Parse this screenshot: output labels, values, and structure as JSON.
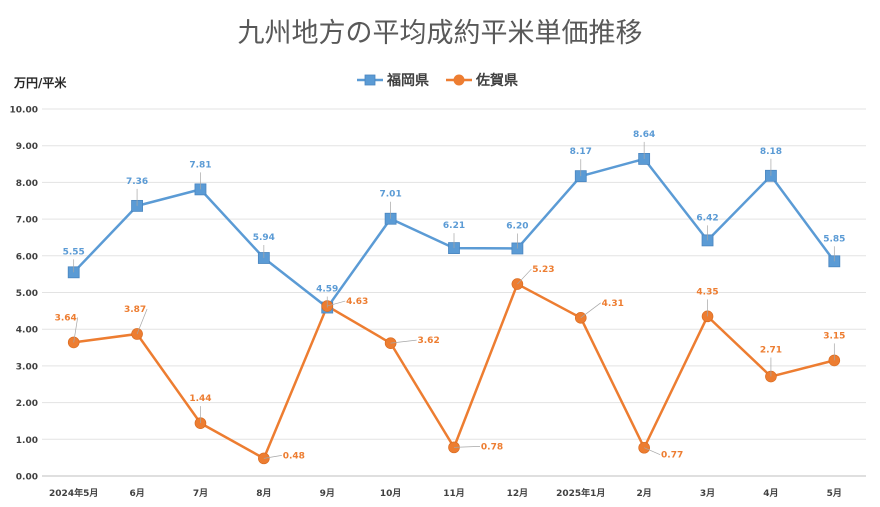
{
  "chart_data": {
    "type": "line",
    "title": "九州地方の平均成約平米単価推移",
    "ylabel": "万円/平米",
    "xlabel": "",
    "categories": [
      "2024年5月",
      "6月",
      "7月",
      "8月",
      "9月",
      "10月",
      "11月",
      "12月",
      "2025年1月",
      "2月",
      "3月",
      "4月",
      "5月"
    ],
    "ylim": [
      0,
      10
    ],
    "yticks": [
      "0.00",
      "1.00",
      "2.00",
      "3.00",
      "4.00",
      "5.00",
      "6.00",
      "7.00",
      "8.00",
      "9.00",
      "10.00"
    ],
    "grid": true,
    "legend_position": "top",
    "series": [
      {
        "name": "福岡県",
        "color": "#5b9bd5",
        "marker": "square",
        "values": [
          5.55,
          7.36,
          7.81,
          5.94,
          4.59,
          7.01,
          6.21,
          6.2,
          8.17,
          8.64,
          6.42,
          8.18,
          5.85
        ],
        "labels": [
          "5.55",
          "7.36",
          "7.81",
          "5.94",
          "4.59",
          "7.01",
          "6.21",
          "6.20",
          "8.17",
          "8.64",
          "6.42",
          "8.18",
          "5.85"
        ]
      },
      {
        "name": "佐賀県",
        "color": "#ed7d31",
        "marker": "circle",
        "values": [
          3.64,
          3.87,
          1.44,
          0.48,
          4.63,
          3.62,
          0.78,
          5.23,
          4.31,
          0.77,
          4.35,
          2.71,
          3.15
        ],
        "labels": [
          "3.64",
          "3.87",
          "1.44",
          "0.48",
          "4.63",
          "3.62",
          "0.78",
          "5.23",
          "4.31",
          "0.77",
          "4.35",
          "2.71",
          "3.15"
        ]
      }
    ]
  }
}
